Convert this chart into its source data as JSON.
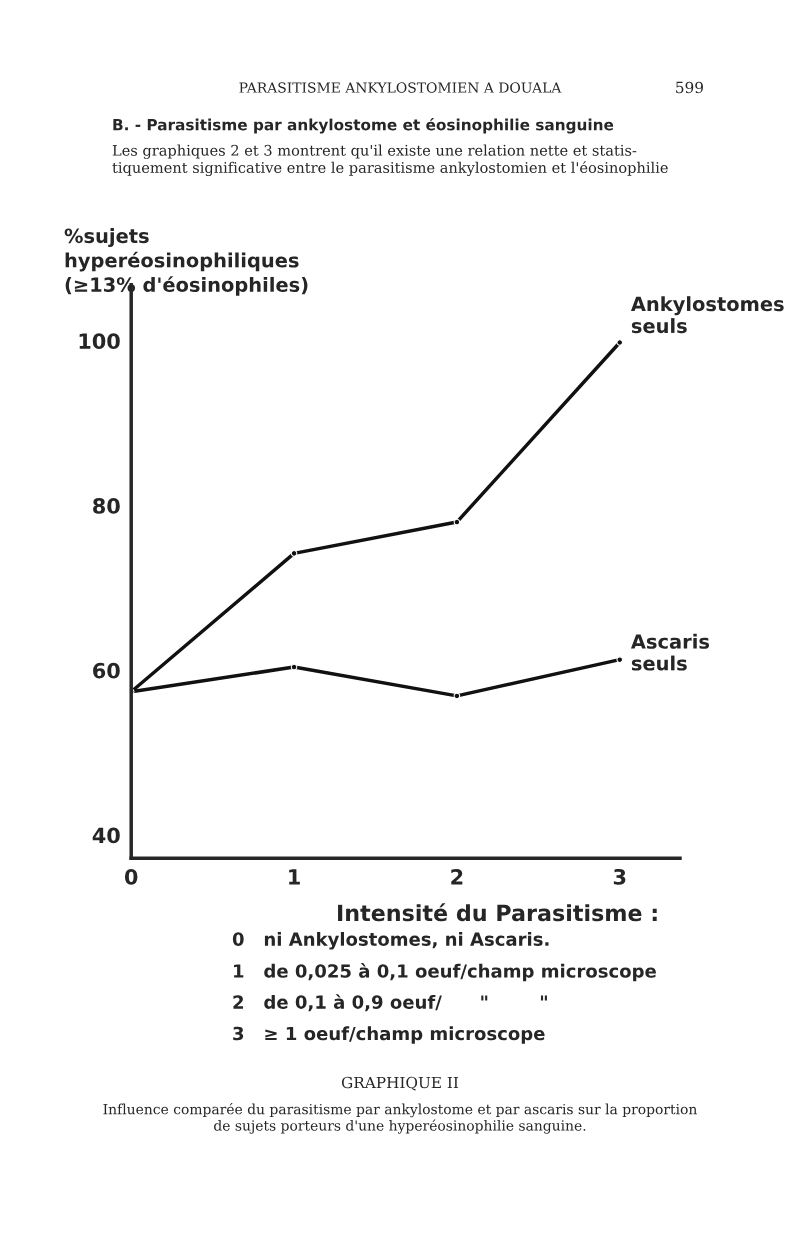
{
  "chart_data": {
    "type": "line",
    "title": "GRAPHIQUE II",
    "subtitle": "Influence comparée du parasitisme par ankylostome et par ascaris sur la proportion\nde sujets porteurs d'une hyperéosinophilie sanguine.",
    "ylabel": "%sujets\nhyperéosinophiliques\n(≥13% d'éosinophiles)",
    "xlabel": "Intensité du Parasitisme :",
    "x": [
      0,
      1,
      2,
      3
    ],
    "series": [
      {
        "name": "Ankylostomes\nseuls",
        "color": "#111111",
        "values": [
          57.4,
          74.2,
          78.0,
          99.8
        ]
      },
      {
        "name": "Ascaris\nseuls",
        "color": "#111111",
        "values": [
          57.4,
          60.4,
          56.9,
          61.3
        ]
      }
    ],
    "xlim": [
      0,
      3.37
    ],
    "ylim": [
      37.2,
      106.8
    ],
    "xticks": [
      0,
      1,
      2,
      3
    ],
    "yticks": [
      40,
      60,
      80,
      100
    ],
    "marker": "circle",
    "line_style": "solid",
    "grid": false,
    "legend": false,
    "annotations": [
      "PARASITISME ANKYLOSTOMIEN A DOUALA",
      "599",
      "B. - Parasitisme par ankylostome et éosinophilie sanguine",
      "Les graphiques 2 et 3 montrent qu'il existe une relation nette et statis-\ntiquement significative entre le parasitisme ankylostomien et l'éosinophilie",
      "0   ni Ankylostomes, ni Ascaris.",
      "1   de 0,025 à 0,1 oeuf/champ microscope",
      "2   de 0,1 à 0,9 oeuf/      \"        \"",
      "3   ≥ 1 oeuf/champ microscope"
    ]
  }
}
